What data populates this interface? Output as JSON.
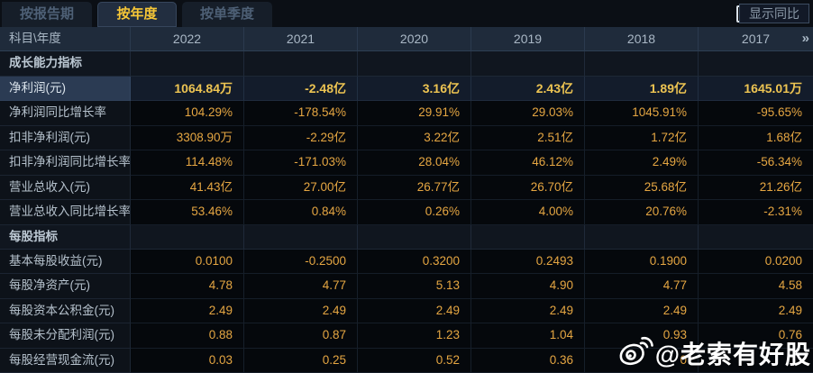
{
  "tabs": [
    {
      "label": "按报告期",
      "active": false
    },
    {
      "label": "按年度",
      "active": true
    },
    {
      "label": "按单季度",
      "active": false
    }
  ],
  "controls": {
    "show_yoy_label": "显示同比",
    "checkbox_checked": false
  },
  "table": {
    "corner_label": "科目\\年度",
    "years": [
      "2022",
      "2021",
      "2020",
      "2019",
      "2018",
      "2017"
    ],
    "more_icon": "»",
    "rows": [
      {
        "type": "section",
        "label": "成长能力指标",
        "values": [
          "",
          "",
          "",
          "",
          "",
          ""
        ]
      },
      {
        "type": "data",
        "highlight": true,
        "label": "净利润(元)",
        "values": [
          "1064.84万",
          "-2.48亿",
          "3.16亿",
          "2.43亿",
          "1.89亿",
          "1645.01万"
        ]
      },
      {
        "type": "data",
        "label": "净利润同比增长率",
        "values": [
          "104.29%",
          "-178.54%",
          "29.91%",
          "29.03%",
          "1045.91%",
          "-95.65%"
        ]
      },
      {
        "type": "data",
        "label": "扣非净利润(元)",
        "values": [
          "3308.90万",
          "-2.29亿",
          "3.22亿",
          "2.51亿",
          "1.72亿",
          "1.68亿"
        ]
      },
      {
        "type": "data",
        "label": "扣非净利润同比增长率",
        "values": [
          "114.48%",
          "-171.03%",
          "28.04%",
          "46.12%",
          "2.49%",
          "-56.34%"
        ]
      },
      {
        "type": "data",
        "label": "营业总收入(元)",
        "values": [
          "41.43亿",
          "27.00亿",
          "26.77亿",
          "26.70亿",
          "25.68亿",
          "21.26亿"
        ]
      },
      {
        "type": "data",
        "label": "营业总收入同比增长率",
        "values": [
          "53.46%",
          "0.84%",
          "0.26%",
          "4.00%",
          "20.76%",
          "-2.31%"
        ]
      },
      {
        "type": "section",
        "label": "每股指标",
        "values": [
          "",
          "",
          "",
          "",
          "",
          ""
        ]
      },
      {
        "type": "data",
        "label": "基本每股收益(元)",
        "values": [
          "0.0100",
          "-0.2500",
          "0.3200",
          "0.2493",
          "0.1900",
          "0.0200"
        ]
      },
      {
        "type": "data",
        "label": "每股净资产(元)",
        "values": [
          "4.78",
          "4.77",
          "5.13",
          "4.90",
          "4.77",
          "4.58"
        ]
      },
      {
        "type": "data",
        "label": "每股资本公积金(元)",
        "values": [
          "2.49",
          "2.49",
          "2.49",
          "2.49",
          "2.49",
          "2.49"
        ]
      },
      {
        "type": "data",
        "label": "每股未分配利润(元)",
        "values": [
          "0.88",
          "0.87",
          "1.23",
          "1.04",
          "0.93",
          "0.76"
        ]
      },
      {
        "type": "data",
        "label": "每股经营现金流(元)",
        "values": [
          "0.03",
          "0.25",
          "0.52",
          "0.36",
          "0",
          ""
        ]
      }
    ]
  },
  "watermark": {
    "text": "@老索有好股"
  },
  "colors": {
    "tab_active_text": "#f7c737",
    "value_orange": "#e5a642",
    "highlight_value_yellow": "#edc452",
    "header_bg": "#1f2b3b",
    "highlight_label_bg": "#2b3b53",
    "page_bg": "#0b0f15"
  }
}
